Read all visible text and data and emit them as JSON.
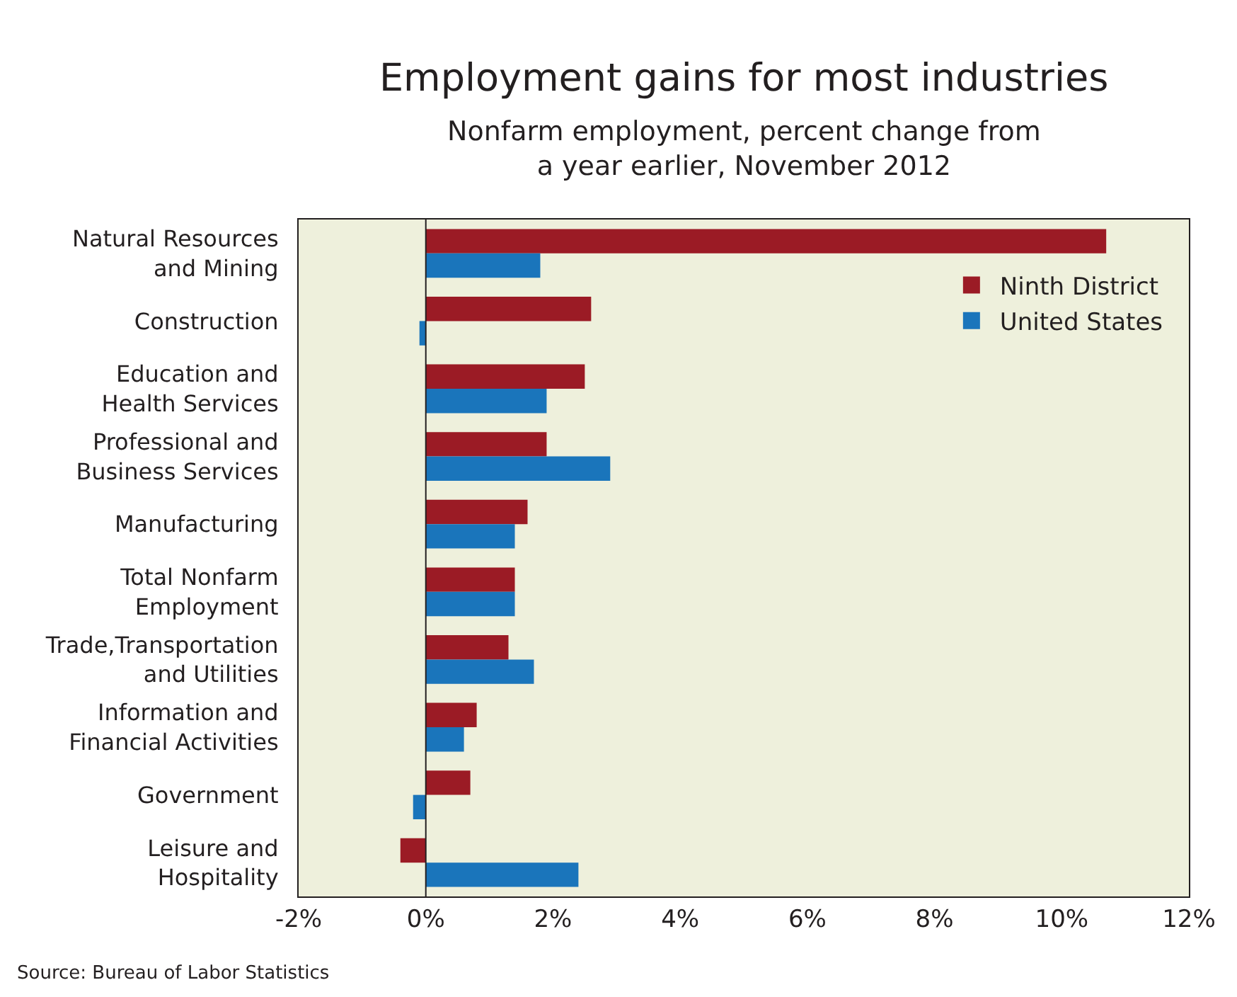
{
  "chart_data": {
    "type": "bar",
    "orientation": "horizontal",
    "title": "Employment gains for most industries",
    "subtitle": "Nonfarm employment, percent change from\na year earlier, November 2012",
    "categories": [
      "Natural Resources\nand Mining",
      "Construction",
      "Education and\nHealth Services",
      "Professional and\nBusiness Services",
      "Manufacturing",
      "Total Nonfarm\nEmployment",
      "Trade,Transportation\nand Utilities",
      "Information and\nFinancial Activities",
      "Government",
      "Leisure and\nHospitality"
    ],
    "series": [
      {
        "name": "Ninth District",
        "color": "#9b1b25",
        "values": [
          10.7,
          2.6,
          2.5,
          1.9,
          1.6,
          1.4,
          1.3,
          0.8,
          0.7,
          -0.4
        ]
      },
      {
        "name": "United States",
        "color": "#1a75bb",
        "values": [
          1.8,
          -0.1,
          1.9,
          2.9,
          1.4,
          1.4,
          1.7,
          0.6,
          -0.2,
          2.4
        ]
      }
    ],
    "xlim": [
      -2,
      12
    ],
    "xticks": [
      {
        "value": -2,
        "label": "-2%"
      },
      {
        "value": 0,
        "label": "0%"
      },
      {
        "value": 2,
        "label": "2%"
      },
      {
        "value": 4,
        "label": "4%"
      },
      {
        "value": 6,
        "label": "6%"
      },
      {
        "value": 8,
        "label": "8%"
      },
      {
        "value": 10,
        "label": "10%"
      },
      {
        "value": 12,
        "label": "12%"
      }
    ],
    "grid": false,
    "legend": "top right",
    "ref_lines": [
      {
        "axis": "x",
        "value": 0,
        "color": "#231f20"
      }
    ],
    "annotations": [
      "Source: Bureau of Labor Statistics"
    ]
  }
}
